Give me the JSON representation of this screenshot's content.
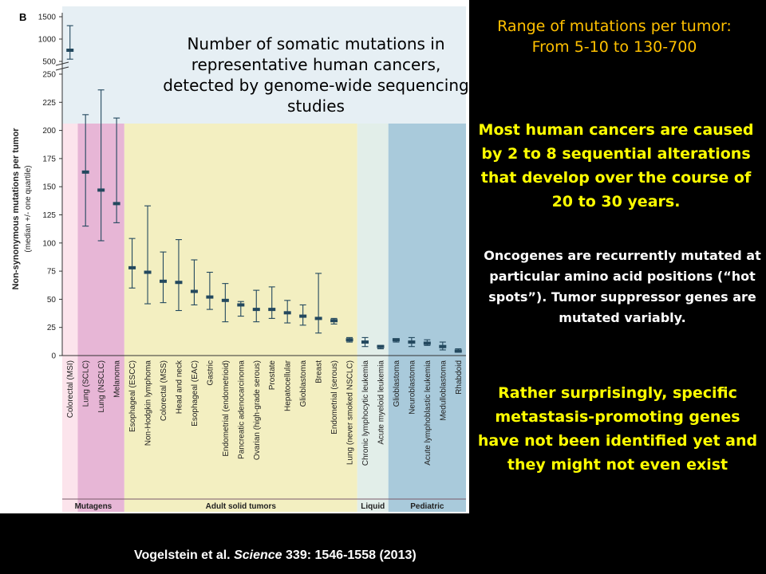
{
  "panel_label": "B",
  "figure_title": "Number of somatic mutations in representative human cancers, detected by genome-wide sequencing studies",
  "right_texts": {
    "range": "Range of mutations per tumor: From 5-10 to 130-700",
    "cause": "Most human cancers are caused by 2 to 8 sequential alterations that develop over the course of 20 to 30 years.",
    "oncogenes": "Oncogenes are recurrently mutated at particular amino acid positions (“hot spots”). Tumor suppressor genes are mutated variably.",
    "metastasis": "Rather surprisingly, specific metastasis-promoting genes have not been identified yet and they might not even exist"
  },
  "citation": {
    "authors": "Vogelstein et al.",
    "journal": "Science",
    "details": "339: 1546-1558 (2013)"
  },
  "colors": {
    "mutagens_col1": "#FCE4EC",
    "mutagens": "#E7B6D6",
    "adult": "#F3EFC1",
    "liquid": "#E2EEE9",
    "pediatric": "#A9CADB",
    "bar": "#23485E",
    "top_band": "#E6EFF4"
  },
  "chart_data": {
    "type": "errorbar",
    "ylabel": "Non-synonymous mutations per tumor",
    "ylabel2": "(median +/- one quartile)",
    "y_ticks_lower": [
      0,
      25,
      50,
      75,
      100,
      125,
      150,
      175,
      200,
      225,
      250
    ],
    "y_ticks_upper": [
      500,
      1000,
      1500
    ],
    "groups": [
      {
        "name": "Mutagens",
        "start": 0,
        "end": 3
      },
      {
        "name": "Adult solid tumors",
        "start": 4,
        "end": 18
      },
      {
        "name": "Liquid",
        "start": 19,
        "end": 20
      },
      {
        "name": "Pediatric",
        "start": 21,
        "end": 25
      }
    ],
    "categories": [
      "Colorectal (MSI)",
      "Lung (SCLC)",
      "Lung (NSCLC)",
      "Melanoma",
      "Esophageal (ESCC)",
      "Non-Hodgkin lymphoma",
      "Colorectal (MSS)",
      "Head and neck",
      "Esophageal (EAC)",
      "Gastric",
      "Endometrial (endometrioid)",
      "Pancreatic adenocarcinoma",
      "Ovarian (high-grade serous)",
      "Prostate",
      "Hepatocellular",
      "Glioblastoma",
      "Breast",
      "Endometrial (serous)",
      "Lung (never smoked NSCLC)",
      "Chronic lymphocytic leukemia",
      "Acute myeloid leukemia",
      "Glioblastoma",
      "Neuroblastoma",
      "Acute lymphoblastic leukemia",
      "Medulloblastoma",
      "Rhabdoid"
    ],
    "median": [
      750,
      163,
      147,
      135,
      78,
      74,
      66,
      65,
      57,
      52,
      49,
      45,
      41,
      41,
      38,
      35,
      33,
      31,
      14,
      12,
      8,
      14,
      12,
      11,
      8,
      4
    ],
    "low": [
      550,
      115,
      102,
      118,
      60,
      46,
      47,
      40,
      45,
      41,
      30,
      35,
      30,
      33,
      29,
      27,
      20,
      28,
      12,
      8,
      6,
      12,
      8,
      9,
      5,
      3
    ],
    "high": [
      1300,
      214,
      236,
      211,
      104,
      133,
      92,
      103,
      85,
      74,
      64,
      48,
      58,
      61,
      49,
      45,
      73,
      33,
      16,
      16,
      9,
      15,
      16,
      14,
      12,
      6
    ]
  }
}
